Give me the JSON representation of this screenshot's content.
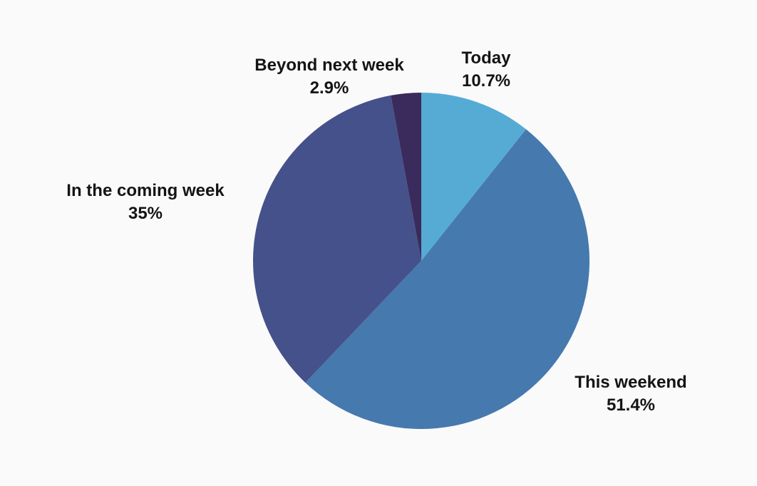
{
  "chart_data": {
    "type": "pie",
    "title": "",
    "background": "#FAFAFA",
    "text_color": "#141414",
    "start_angle_deg": 0,
    "direction": "clockwise",
    "legend": "none",
    "labels_position": "outside",
    "categories": [
      "Today",
      "This weekend",
      "In the coming week",
      "Beyond next week"
    ],
    "values": [
      10.7,
      51.4,
      35,
      2.9
    ],
    "slices": [
      {
        "label": "Today",
        "value": 10.7,
        "display": "10.7%",
        "color": "#55ABD4"
      },
      {
        "label": "This weekend",
        "value": 51.4,
        "display": "51.4%",
        "color": "#4679AE"
      },
      {
        "label": "In the coming week",
        "value": 35,
        "display": "35%",
        "color": "#45518A"
      },
      {
        "label": "Beyond next week",
        "value": 2.9,
        "display": "2.9%",
        "color": "#3A2B5C"
      }
    ]
  }
}
